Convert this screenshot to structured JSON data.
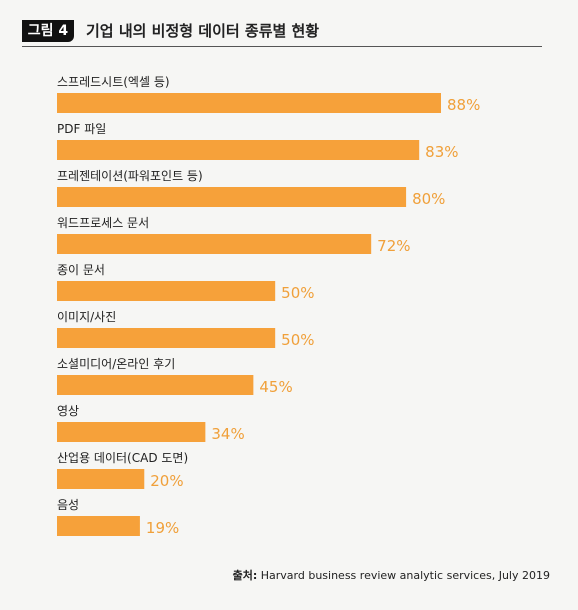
{
  "figure": {
    "tag": "그림 4",
    "title": "기업 내의 비정형 데이터 종류별 현황"
  },
  "source": {
    "prefix": "출처:",
    "text": "Harvard business review analytic services, July 2019"
  },
  "colors": {
    "bar": "#f6a13a",
    "value_label": "#f0a03a"
  },
  "chart_data": {
    "type": "bar",
    "orientation": "horizontal",
    "categories": [
      "스프레드시트(엑셀 등)",
      "PDF 파일",
      "프레젠테이션(파워포인트 등)",
      "워드프로세스 문서",
      "종이 문서",
      "이미지/사진",
      "소셜미디어/온라인 후기",
      "영상",
      "산업용 데이터(CAD 도면)",
      "음성"
    ],
    "values": [
      88,
      83,
      80,
      72,
      50,
      50,
      45,
      34,
      20,
      19
    ],
    "value_labels": [
      "88%",
      "83%",
      "80%",
      "72%",
      "50%",
      "50%",
      "45%",
      "34%",
      "20%",
      "19%"
    ],
    "unit": "%",
    "title": "기업 내의 비정형 데이터 종류별 현황",
    "xlabel": "",
    "ylabel": ""
  }
}
